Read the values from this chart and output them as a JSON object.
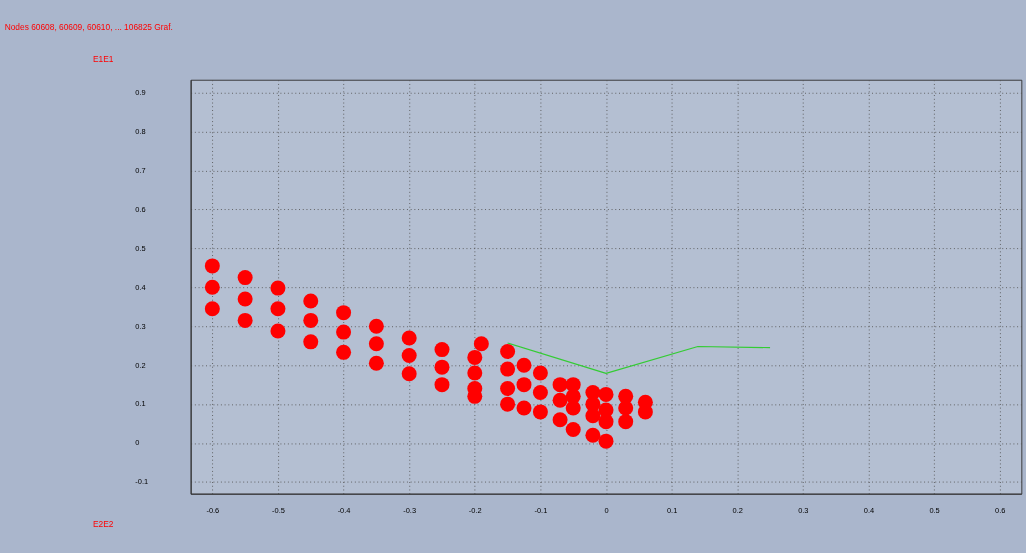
{
  "chart_data": {
    "type": "scatter",
    "title": "Nodes 60608, 60609, 60610, ... 106825 Graf.",
    "xlabel": "E2E2",
    "ylabel": "E1E1",
    "xlim": [
      -0.633,
      0.633
    ],
    "ylim": [
      -0.13,
      0.933
    ],
    "xticks": [
      -0.6,
      -0.5,
      -0.4,
      -0.3,
      -0.2,
      -0.1,
      0,
      0.1,
      0.2,
      0.3,
      0.4,
      0.5,
      0.6
    ],
    "yticks": [
      -0.1,
      0,
      0.1,
      0.2,
      0.3,
      0.4,
      0.5,
      0.6,
      0.7,
      0.8,
      0.9
    ],
    "grid": true,
    "series": [
      {
        "marker": "circle",
        "color": "#ff0000",
        "x": [
          -0.6,
          -0.6,
          -0.6,
          -0.55,
          -0.55,
          -0.55,
          -0.5,
          -0.5,
          -0.5,
          -0.45,
          -0.45,
          -0.45,
          -0.4,
          -0.4,
          -0.4,
          -0.35,
          -0.35,
          -0.35,
          -0.3,
          -0.3,
          -0.3,
          -0.25,
          -0.25,
          -0.25,
          -0.2,
          -0.2,
          -0.2,
          -0.2,
          -0.19,
          -0.15,
          -0.15,
          -0.15,
          -0.15,
          -0.125,
          -0.125,
          -0.125,
          -0.1,
          -0.1,
          -0.1,
          -0.07,
          -0.07,
          -0.07,
          -0.05,
          -0.05,
          -0.05,
          -0.05,
          -0.02,
          -0.02,
          -0.02,
          -0.02,
          0,
          0,
          0,
          0,
          0.03,
          0.03,
          0.03,
          0.06,
          0.06
        ],
        "values": [
          0.455,
          0.4,
          0.345,
          0.425,
          0.37,
          0.315,
          0.398,
          0.345,
          0.288,
          0.365,
          0.315,
          0.26,
          0.335,
          0.285,
          0.233,
          0.3,
          0.255,
          0.205,
          0.27,
          0.225,
          0.178,
          0.24,
          0.195,
          0.15,
          0.22,
          0.18,
          0.14,
          0.12,
          0.255,
          0.235,
          0.19,
          0.14,
          0.1,
          0.2,
          0.15,
          0.09,
          0.18,
          0.13,
          0.08,
          0.15,
          0.11,
          0.06,
          0.15,
          0.12,
          0.09,
          0.035,
          0.13,
          0.1,
          0.07,
          0.02,
          0.125,
          0.085,
          0.055,
          0.005,
          0.12,
          0.09,
          0.055,
          0.105,
          0.08
        ]
      },
      {
        "type": "line",
        "color": "#33cc33",
        "x": [
          -0.15,
          0,
          0.14,
          0.25
        ],
        "values": [
          0.257,
          0.179,
          0.248,
          0.245
        ]
      }
    ]
  }
}
